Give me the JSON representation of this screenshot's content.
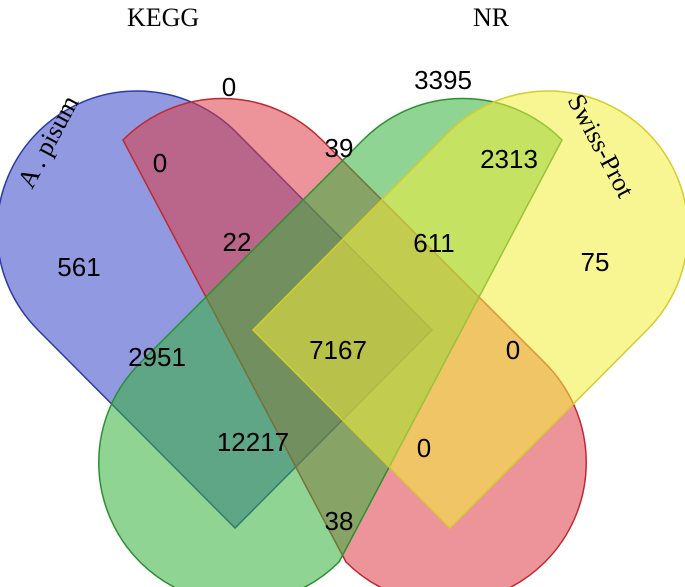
{
  "sets": {
    "apisum": {
      "label": "A . pisum",
      "fill": "#3747c8",
      "stroke": "#2a3aa8"
    },
    "kegg": {
      "label": "KEGG",
      "fill": "#dc3c45",
      "stroke": "#c0282f"
    },
    "nr": {
      "label": "NR",
      "fill": "#34b13c",
      "stroke": "#2a9030"
    },
    "swissprot": {
      "label": "Swiss-Prot",
      "fill": "#f2ec3a",
      "stroke": "#d6cc2a"
    }
  },
  "regions": {
    "apisum_only": "561",
    "kegg_only": "0",
    "nr_only": "3395",
    "swissprot_only": "75",
    "apisum_kegg": "0",
    "kegg_nr": "39",
    "nr_swissprot": "2313",
    "apisum_kegg_nr": "22",
    "kegg_nr_swissprot": "611",
    "apisum_nr": "2951",
    "all_four": "7167",
    "kegg_swissprot": "0",
    "apisum_nr_swissprot": "12217",
    "apisum_kegg_swissprot": "0",
    "apisum_swissprot": "38"
  }
}
